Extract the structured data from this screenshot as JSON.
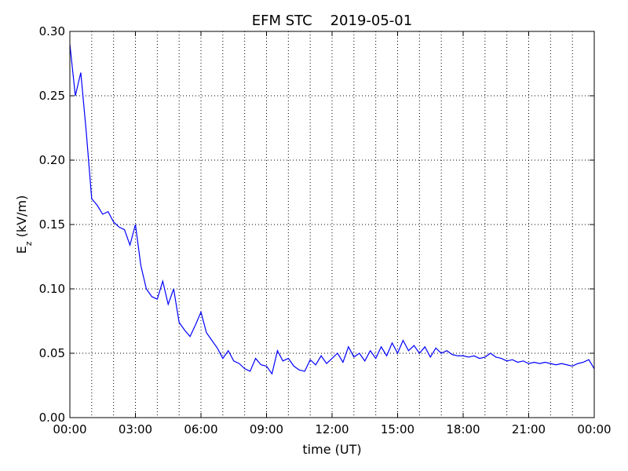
{
  "chart_data": {
    "type": "line",
    "title": "EFM STC    2019-05-01",
    "xlabel": "time (UT)",
    "ylabel": {
      "main": "E",
      "sub": "z",
      "unit": " (kV/m)"
    },
    "x": [
      0,
      0.25,
      0.5,
      0.75,
      1,
      1.25,
      1.5,
      1.75,
      2,
      2.25,
      2.5,
      2.75,
      3,
      3.25,
      3.5,
      3.75,
      4,
      4.25,
      4.5,
      4.75,
      5,
      5.25,
      5.5,
      5.75,
      6,
      6.25,
      6.5,
      6.75,
      7,
      7.25,
      7.5,
      7.75,
      8,
      8.25,
      8.5,
      8.75,
      9,
      9.25,
      9.5,
      9.75,
      10,
      10.25,
      10.5,
      10.75,
      11,
      11.25,
      11.5,
      11.75,
      12,
      12.25,
      12.5,
      12.75,
      13,
      13.25,
      13.5,
      13.75,
      14,
      14.25,
      14.5,
      14.75,
      15,
      15.25,
      15.5,
      15.75,
      16,
      16.25,
      16.5,
      16.75,
      17,
      17.25,
      17.5,
      17.75,
      18,
      18.25,
      18.5,
      18.75,
      19,
      19.25,
      19.5,
      19.75,
      20,
      20.25,
      20.5,
      20.75,
      21,
      21.25,
      21.5,
      21.75,
      22,
      22.25,
      22.5,
      22.75,
      23,
      23.25,
      23.5,
      23.75,
      24
    ],
    "series": [
      {
        "color": "#0000ff",
        "values": [
          0.29,
          0.25,
          0.268,
          0.222,
          0.17,
          0.165,
          0.158,
          0.16,
          0.152,
          0.148,
          0.146,
          0.134,
          0.15,
          0.118,
          0.1,
          0.094,
          0.092,
          0.106,
          0.088,
          0.1,
          0.074,
          0.068,
          0.063,
          0.072,
          0.082,
          0.066,
          0.06,
          0.054,
          0.046,
          0.052,
          0.044,
          0.042,
          0.038,
          0.036,
          0.046,
          0.041,
          0.04,
          0.034,
          0.052,
          0.044,
          0.046,
          0.04,
          0.037,
          0.036,
          0.045,
          0.041,
          0.048,
          0.042,
          0.046,
          0.05,
          0.043,
          0.055,
          0.047,
          0.05,
          0.044,
          0.052,
          0.046,
          0.055,
          0.048,
          0.058,
          0.05,
          0.06,
          0.052,
          0.056,
          0.05,
          0.055,
          0.047,
          0.054,
          0.05,
          0.052,
          0.049,
          0.048,
          0.048,
          0.047,
          0.048,
          0.046,
          0.047,
          0.05,
          0.047,
          0.046,
          0.044,
          0.045,
          0.043,
          0.044,
          0.042,
          0.043,
          0.042,
          0.043,
          0.042,
          0.041,
          0.042,
          0.041,
          0.04,
          0.042,
          0.043,
          0.045,
          0.038
        ]
      }
    ],
    "xlim": [
      0,
      24
    ],
    "xticks": [
      {
        "value": 0,
        "label": "00:00"
      },
      {
        "value": 3,
        "label": "03:00"
      },
      {
        "value": 6,
        "label": "06:00"
      },
      {
        "value": 9,
        "label": "09:00"
      },
      {
        "value": 12,
        "label": "12:00"
      },
      {
        "value": 15,
        "label": "15:00"
      },
      {
        "value": 18,
        "label": "18:00"
      },
      {
        "value": 21,
        "label": "21:00"
      },
      {
        "value": 24,
        "label": "00:00"
      }
    ],
    "xminorticks": [
      1,
      2,
      4,
      5,
      7,
      8,
      10,
      11,
      13,
      14,
      16,
      17,
      19,
      20,
      22,
      23
    ],
    "ylim": [
      0,
      0.3
    ],
    "yticks": [
      {
        "value": 0,
        "label": "0.00"
      },
      {
        "value": 0.05,
        "label": "0.05"
      },
      {
        "value": 0.1,
        "label": "0.10"
      },
      {
        "value": 0.15,
        "label": "0.15"
      },
      {
        "value": 0.2,
        "label": "0.20"
      },
      {
        "value": 0.25,
        "label": "0.25"
      },
      {
        "value": 0.3,
        "label": "0.30"
      }
    ],
    "grid": true
  }
}
